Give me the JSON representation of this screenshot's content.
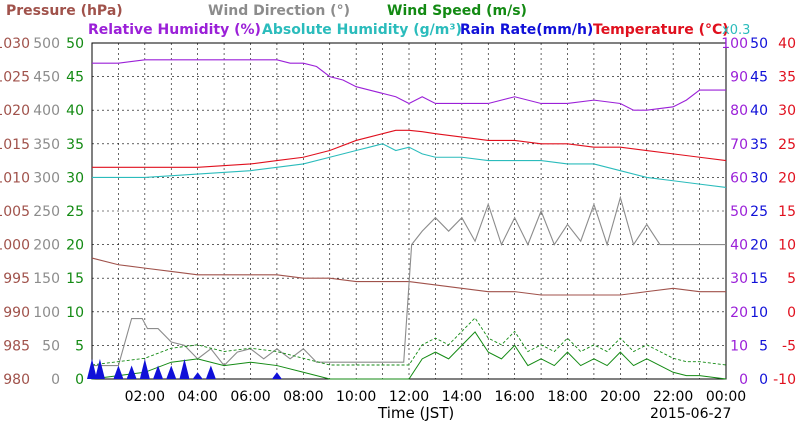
{
  "chart_data": {
    "type": "line",
    "header": {
      "line1": [
        {
          "text": "Pressure (hPa)",
          "color": "#a0524b"
        },
        {
          "text": "Wind Direction (°)",
          "color": "#8c8c8c"
        },
        {
          "text": "Wind Speed (m/s)",
          "color": "#138a13"
        }
      ],
      "line2": [
        {
          "text": "Relative Humidity (%)",
          "color": "#9b20d8"
        },
        {
          "text": "Absolute Humidity (g/m³)",
          "color": "#2bbcbc"
        },
        {
          "text": "Rain Rate(mm/h)",
          "color": "#1010d8"
        },
        {
          "text": "Temperature (°C)",
          "color": "#e0101e"
        },
        {
          "text": "x0.3",
          "color": "#2bbcbc"
        }
      ]
    },
    "xlabel": "Time (JST)",
    "date_label": "2015-06-27",
    "x_ticks": [
      "02:00",
      "04:00",
      "06:00",
      "08:00",
      "10:00",
      "12:00",
      "14:00",
      "16:00",
      "18:00",
      "20:00",
      "22:00",
      "00:00"
    ],
    "xlim_hours": [
      0,
      24
    ],
    "left_axes": [
      {
        "name": "Pressure (hPa)",
        "color": "#a0524b",
        "ticks": [
          "980",
          "985",
          "990",
          "995",
          "1000",
          "1005",
          "1010",
          "1015",
          "1020",
          "1025",
          "1030"
        ],
        "ylim": [
          980,
          1030
        ]
      },
      {
        "name": "Wind Direction (°)",
        "color": "#8c8c8c",
        "ticks": [
          "0",
          "50",
          "100",
          "150",
          "200",
          "250",
          "300",
          "350",
          "400",
          "450",
          "500"
        ],
        "ylim": [
          0,
          500
        ]
      },
      {
        "name": "Wind Speed (m/s)",
        "color": "#138a13",
        "ticks": [
          "0",
          "5",
          "10",
          "15",
          "20",
          "25",
          "30",
          "35",
          "40",
          "45",
          "50"
        ],
        "ylim": [
          0,
          50
        ]
      }
    ],
    "right_axes": [
      {
        "name": "Relative Humidity (%)",
        "color": "#9b20d8",
        "ticks": [
          "0",
          "10",
          "20",
          "30",
          "40",
          "50",
          "60",
          "70",
          "80",
          "90",
          "100"
        ],
        "ylim": [
          0,
          100
        ]
      },
      {
        "name": "Rain Rate(mm/h)",
        "color": "#1010d8",
        "ticks": [
          "0",
          "5",
          "10",
          "15",
          "20",
          "25",
          "30",
          "35",
          "40",
          "45",
          "50"
        ],
        "ylim": [
          0,
          50
        ]
      },
      {
        "name": "Temperature (°C)",
        "color": "#e0101e",
        "ticks": [
          "-10",
          "-5",
          "0",
          "5",
          "10",
          "15",
          "20",
          "25",
          "30",
          "35",
          "40"
        ],
        "ylim": [
          -10,
          40
        ]
      }
    ],
    "grid": true,
    "series": [
      {
        "name": "Relative Humidity (%)",
        "color": "#9b20d8",
        "axis": "rh",
        "x": [
          0,
          1,
          2,
          3,
          4,
          5,
          6,
          7,
          7.5,
          8,
          8.5,
          9,
          9.5,
          10,
          10.5,
          11,
          11.5,
          12,
          12.5,
          13,
          14,
          15,
          16,
          17,
          18,
          19,
          20,
          20.5,
          21,
          22,
          22.5,
          23,
          24
        ],
        "y": [
          94,
          94,
          95,
          95,
          95,
          95,
          95,
          95,
          94,
          94,
          93,
          90,
          89,
          87,
          86,
          85,
          84,
          82,
          84,
          82,
          82,
          82,
          84,
          82,
          82,
          83,
          82,
          80,
          80,
          81,
          83,
          86,
          86
        ]
      },
      {
        "name": "Temperature (°C)",
        "color": "#e0101e",
        "axis": "temp",
        "x": [
          0,
          2,
          4,
          6,
          7,
          8,
          9,
          10,
          10.5,
          11,
          11.5,
          12,
          12.5,
          13,
          14,
          15,
          16,
          17,
          18,
          19,
          20,
          21,
          22,
          23,
          24
        ],
        "y": [
          21.5,
          21.5,
          21.5,
          22,
          22.5,
          23,
          24,
          25.5,
          26,
          26.5,
          27,
          27,
          26.8,
          26.5,
          26,
          25.5,
          25.5,
          25,
          25,
          24.5,
          24.5,
          24,
          23.5,
          23,
          22.5
        ]
      },
      {
        "name": "Absolute Humidity (g/m³)",
        "color": "#2bbcbc",
        "axis": "rh",
        "x": [
          0,
          2,
          4,
          6,
          7,
          8,
          9,
          9.5,
          10,
          10.5,
          11,
          11.5,
          12,
          12.5,
          13,
          14,
          15,
          16,
          17,
          18,
          19,
          20,
          21,
          22,
          23,
          24
        ],
        "y": [
          60,
          60,
          61,
          62,
          63,
          64,
          66,
          67,
          68,
          69,
          70,
          68,
          69,
          67,
          66,
          66,
          65,
          65,
          65,
          64,
          64,
          62,
          60,
          59,
          58,
          57
        ]
      },
      {
        "name": "Pressure (hPa)",
        "color": "#a0524b",
        "axis": "pres",
        "x": [
          0,
          1,
          2,
          3,
          4,
          5,
          6,
          7,
          8,
          9,
          10,
          11,
          12,
          13,
          14,
          15,
          16,
          17,
          18,
          19,
          20,
          21,
          22,
          23,
          24
        ],
        "y": [
          998,
          997,
          996.5,
          996,
          995.5,
          995.5,
          995.5,
          995.5,
          995,
          995,
          994.5,
          994.5,
          994.5,
          994,
          993.5,
          993,
          993,
          992.5,
          992.5,
          992.5,
          992.5,
          993,
          993.5,
          993,
          993
        ]
      },
      {
        "name": "Wind Direction (°)",
        "color": "#8c8c8c",
        "axis": "wd",
        "x": [
          0,
          1,
          1.5,
          1.9,
          2.1,
          2.5,
          3,
          3.5,
          4,
          4.5,
          5,
          5.5,
          6,
          6.5,
          7,
          7.5,
          8,
          8.5,
          9,
          10,
          11,
          11.8,
          12.1,
          12.5,
          13,
          13.5,
          14,
          14.5,
          15,
          15.5,
          16,
          16.5,
          17,
          17.5,
          18,
          18.5,
          19,
          19.5,
          20,
          20.5,
          21,
          21.5,
          22,
          22.5,
          23,
          23.5,
          24
        ],
        "y": [
          20,
          20,
          90,
          90,
          75,
          75,
          55,
          50,
          30,
          45,
          20,
          40,
          45,
          30,
          45,
          30,
          45,
          25,
          25,
          25,
          25,
          25,
          200,
          220,
          240,
          220,
          240,
          205,
          260,
          200,
          240,
          200,
          250,
          200,
          230,
          205,
          260,
          200,
          270,
          200,
          230,
          200,
          200,
          200,
          200,
          200,
          200
        ]
      },
      {
        "name": "Wind Speed (m/s)",
        "color": "#138a13",
        "axis": "ws",
        "x": [
          0,
          1,
          2,
          3,
          4,
          5,
          6,
          7,
          8,
          9,
          10,
          11,
          12,
          12.5,
          13,
          13.5,
          14,
          14.5,
          15,
          15.5,
          16,
          16.5,
          17,
          17.5,
          18,
          18.5,
          19,
          19.5,
          20,
          20.5,
          21,
          21.5,
          22,
          22.5,
          23,
          24
        ],
        "y": [
          0,
          0.5,
          1,
          2.5,
          3,
          2,
          2.5,
          2,
          1,
          0,
          0,
          0,
          0,
          3,
          4,
          3,
          5,
          7,
          4,
          3,
          5,
          2,
          3,
          2,
          4,
          2,
          3,
          2,
          4,
          2,
          3,
          2,
          1,
          0.5,
          0.5,
          0
        ]
      },
      {
        "name": "Rain Rate(mm/h)",
        "color": "#1010d8",
        "axis": "rain",
        "x": [
          0,
          0.3,
          0.6,
          1.0,
          1.5,
          2.0,
          2.5,
          3.0,
          3.5,
          4.0,
          4.5,
          5.0,
          6.0,
          7.0,
          8.0,
          10.0,
          12.0,
          14.0,
          16.0,
          18.0,
          20.0,
          22.0,
          24.0
        ],
        "y": [
          3,
          3,
          0,
          2,
          2,
          3,
          2,
          2,
          3,
          1,
          2,
          0,
          0,
          1,
          0,
          0,
          0,
          0,
          0,
          0,
          0,
          0,
          0
        ]
      }
    ]
  }
}
